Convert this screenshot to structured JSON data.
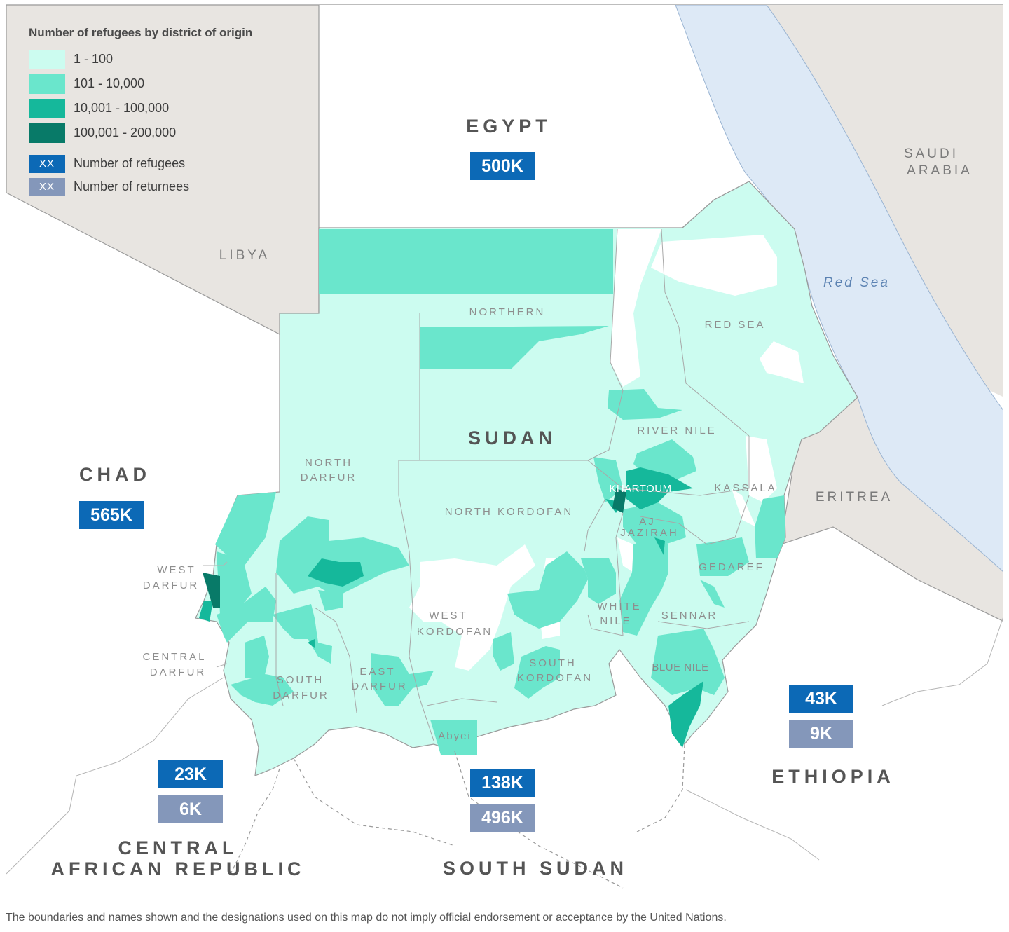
{
  "legend": {
    "title": "Number of refugees by district of origin",
    "classes": [
      {
        "label": "1 - 100",
        "color": "#ccfcf0"
      },
      {
        "label": "101 - 10,000",
        "color": "#6ae6cc"
      },
      {
        "label": "10,001 - 100,000",
        "color": "#15b89b"
      },
      {
        "label": "100,001 - 200,000",
        "color": "#087a68"
      }
    ],
    "keys": [
      {
        "box": "XX",
        "label": "Number of refugees",
        "color": "#0c69b6"
      },
      {
        "box": "XX",
        "label": "Number of returnees",
        "color": "#8497ba"
      }
    ]
  },
  "countries": {
    "sudan": "SUDAN",
    "egypt": "EGYPT",
    "chad": "CHAD",
    "car_line1": "CENTRAL",
    "car_line2": "AFRICAN REPUBLIC",
    "south_sudan": "SOUTH SUDAN",
    "ethiopia": "ETHIOPIA",
    "libya": "LIBYA",
    "saudi_line1": "SAUDI",
    "saudi_line2": "ARABIA",
    "eritrea": "ERITREA",
    "red_sea": "Red Sea"
  },
  "figures": {
    "egypt_refugees": "500K",
    "chad_refugees": "565K",
    "car_refugees": "23K",
    "car_returnees": "6K",
    "south_sudan_refugees": "138K",
    "south_sudan_returnees": "496K",
    "ethiopia_refugees": "43K",
    "ethiopia_returnees": "9K"
  },
  "states": {
    "northern": "NORTHERN",
    "red_sea": "RED SEA",
    "river_nile": "RIVER NILE",
    "north_darfur_1": "NORTH",
    "north_darfur_2": "DARFUR",
    "north_kordofan": "NORTH KORDOFAN",
    "khartoum": "KHARTOUM",
    "kassala": "KASSALA",
    "aj_jazirah_1": "AJ",
    "aj_jazirah_2": "JAZIRAH",
    "gedaref": "GEDAREF",
    "west_darfur_1": "WEST",
    "west_darfur_2": "DARFUR",
    "white_nile_1": "WHITE",
    "white_nile_2": "NILE",
    "west_kordofan_1": "WEST",
    "west_kordofan_2": "KORDOFAN",
    "sennar": "SENNAR",
    "central_darfur_1": "CENTRAL",
    "central_darfur_2": "DARFUR",
    "south_darfur_1": "SOUTH",
    "south_darfur_2": "DARFUR",
    "east_darfur_1": "EAST",
    "east_darfur_2": "DARFUR",
    "south_kordofan_1": "SOUTH",
    "south_kordofan_2": "KORDOFAN",
    "blue_nile": "BLUE NILE",
    "abyei": "Abyei"
  },
  "disclaimer": "The boundaries and names shown and the designations used on this map do not imply official endorsement or acceptance by the United Nations."
}
